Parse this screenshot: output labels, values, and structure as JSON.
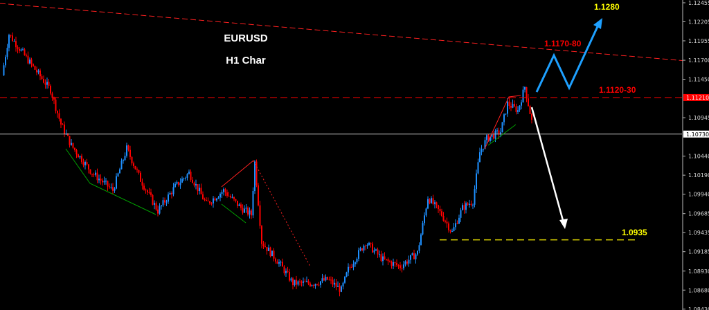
{
  "chart_data": {
    "type": "candlestick",
    "title": "EURUSD",
    "subtitle": "H1 Char",
    "symbol": "EURUSD",
    "ylim": [
      1.084,
      1.125
    ],
    "y_ticks": [
      "1.12455",
      "1.12205",
      "1.11955",
      "1.11700",
      "1.11450",
      "1.10945",
      "1.10440",
      "1.10190",
      "1.09940",
      "1.09685",
      "1.09435",
      "1.09185",
      "1.08930",
      "1.08680",
      "1.08430"
    ],
    "price_markers": [
      {
        "label": "1.11210",
        "value": 1.1121,
        "color": "#ff0000",
        "text_color": "#ffffff"
      },
      {
        "label": "1.10730",
        "value": 1.1073,
        "color": "#ffffff",
        "text_color": "#000000"
      }
    ],
    "close_path": [
      [
        0,
        1.115
      ],
      [
        2,
        1.1204
      ],
      [
        8,
        1.1167
      ],
      [
        14,
        1.1131
      ],
      [
        17,
        1.1086
      ],
      [
        20,
        1.1058
      ],
      [
        26,
        1.1022
      ],
      [
        32,
        1.0999
      ],
      [
        36,
        1.1054
      ],
      [
        40,
        1.1013
      ],
      [
        45,
        1.0972
      ],
      [
        50,
        1.1004
      ],
      [
        54,
        1.1022
      ],
      [
        59,
        1.0981
      ],
      [
        64,
        1.0999
      ],
      [
        69,
        1.0976
      ],
      [
        72,
        1.0967
      ],
      [
        73,
        1.1036
      ],
      [
        75,
        1.0931
      ],
      [
        80,
        1.0904
      ],
      [
        84,
        1.0877
      ],
      [
        90,
        1.0877
      ],
      [
        94,
        1.0882
      ],
      [
        98,
        1.0868
      ],
      [
        100,
        1.0895
      ],
      [
        105,
        1.0931
      ],
      [
        110,
        1.0908
      ],
      [
        115,
        1.0899
      ],
      [
        120,
        1.0917
      ],
      [
        123,
        1.099
      ],
      [
        127,
        1.0967
      ],
      [
        130,
        1.0944
      ],
      [
        133,
        1.0976
      ],
      [
        136,
        1.0985
      ],
      [
        138,
        1.1049
      ],
      [
        140,
        1.1067
      ],
      [
        144,
        1.1076
      ],
      [
        146,
        1.1113
      ],
      [
        149,
        1.1104
      ],
      [
        151,
        1.1135
      ],
      [
        153,
        1.109
      ]
    ],
    "candle_colors": {
      "up": "#1e90ff",
      "down": "#ff0000"
    },
    "levels": [
      {
        "label": "1.1120-30",
        "value": 1.1121,
        "color": "#ff0000",
        "style": "dashed"
      },
      {
        "label": "1.0935",
        "value": 1.0934,
        "color": "#e0d800",
        "style": "dashed"
      },
      {
        "label": "",
        "value": 1.1073,
        "color": "#c0c0c0",
        "style": "solid"
      }
    ],
    "annotations": [
      {
        "label": "1.1280",
        "color": "#ffff00"
      },
      {
        "label": "1.1170-80",
        "color": "#ff0000"
      }
    ],
    "grid": false
  }
}
